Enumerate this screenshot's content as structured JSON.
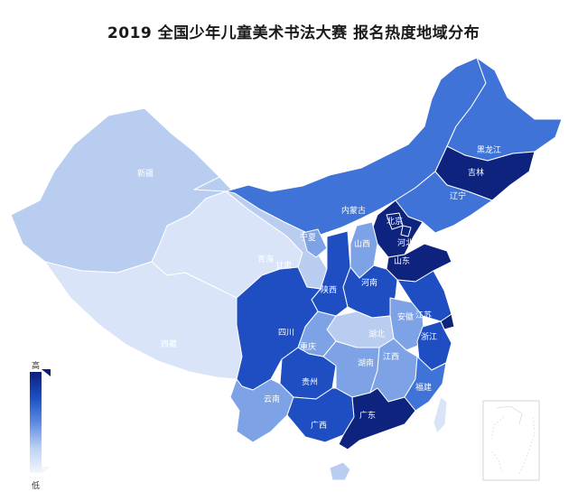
{
  "title": "2019 全国少年儿童美术书法大赛 报名热度地域分布",
  "legend": {
    "high_label": "高",
    "low_label": "低"
  },
  "colors": {
    "lowest": "#d9e4f8",
    "low": "#b9cdf0",
    "mid": "#7da3e6",
    "midhigh": "#3f73d7",
    "high": "#1e4ec2",
    "highest": "#0d237e"
  },
  "provinces": [
    {
      "id": "xinjiang",
      "label": "新疆",
      "level": "low"
    },
    {
      "id": "xizang",
      "label": "西藏",
      "level": "lowest"
    },
    {
      "id": "qinghai",
      "label": "青海",
      "level": "lowest"
    },
    {
      "id": "gansu",
      "label": "甘肃",
      "level": "low"
    },
    {
      "id": "neimenggu",
      "label": "内蒙古",
      "level": "midhigh"
    },
    {
      "id": "heilongjiang",
      "label": "黑龙江",
      "level": "midhigh"
    },
    {
      "id": "jilin",
      "label": "吉林",
      "level": "highest"
    },
    {
      "id": "liaoning",
      "label": "辽宁",
      "level": "midhigh"
    },
    {
      "id": "beijing",
      "label": "北京",
      "level": "highest"
    },
    {
      "id": "tianjin",
      "label": "",
      "level": "highest"
    },
    {
      "id": "hebei",
      "label": "河北",
      "level": "highest"
    },
    {
      "id": "shanxi",
      "label": "山西",
      "level": "mid"
    },
    {
      "id": "shandong",
      "label": "山东",
      "level": "highest"
    },
    {
      "id": "ningxia",
      "label": "宁夏",
      "level": "mid"
    },
    {
      "id": "shaanxi",
      "label": "陕西",
      "level": "high"
    },
    {
      "id": "henan",
      "label": "河南",
      "level": "high"
    },
    {
      "id": "jiangsu",
      "label": "江苏",
      "level": "high"
    },
    {
      "id": "anhui",
      "label": "安徽",
      "level": "mid"
    },
    {
      "id": "shanghai",
      "label": "",
      "level": "highest"
    },
    {
      "id": "zhejiang",
      "label": "浙江",
      "level": "high"
    },
    {
      "id": "hubei",
      "label": "湖北",
      "level": "low"
    },
    {
      "id": "sichuan",
      "label": "四川",
      "level": "high"
    },
    {
      "id": "chongqing",
      "label": "重庆",
      "level": "mid"
    },
    {
      "id": "guizhou",
      "label": "贵州",
      "level": "high"
    },
    {
      "id": "hunan",
      "label": "湖南",
      "level": "mid"
    },
    {
      "id": "jiangxi",
      "label": "江西",
      "level": "mid"
    },
    {
      "id": "fujian",
      "label": "福建",
      "level": "midhigh"
    },
    {
      "id": "yunnan",
      "label": "云南",
      "level": "mid"
    },
    {
      "id": "guangxi",
      "label": "广西",
      "level": "high"
    },
    {
      "id": "guangdong",
      "label": "广东",
      "level": "highest"
    },
    {
      "id": "hainan",
      "label": "",
      "level": "low"
    },
    {
      "id": "taiwan",
      "label": "",
      "level": "lowest"
    }
  ]
}
